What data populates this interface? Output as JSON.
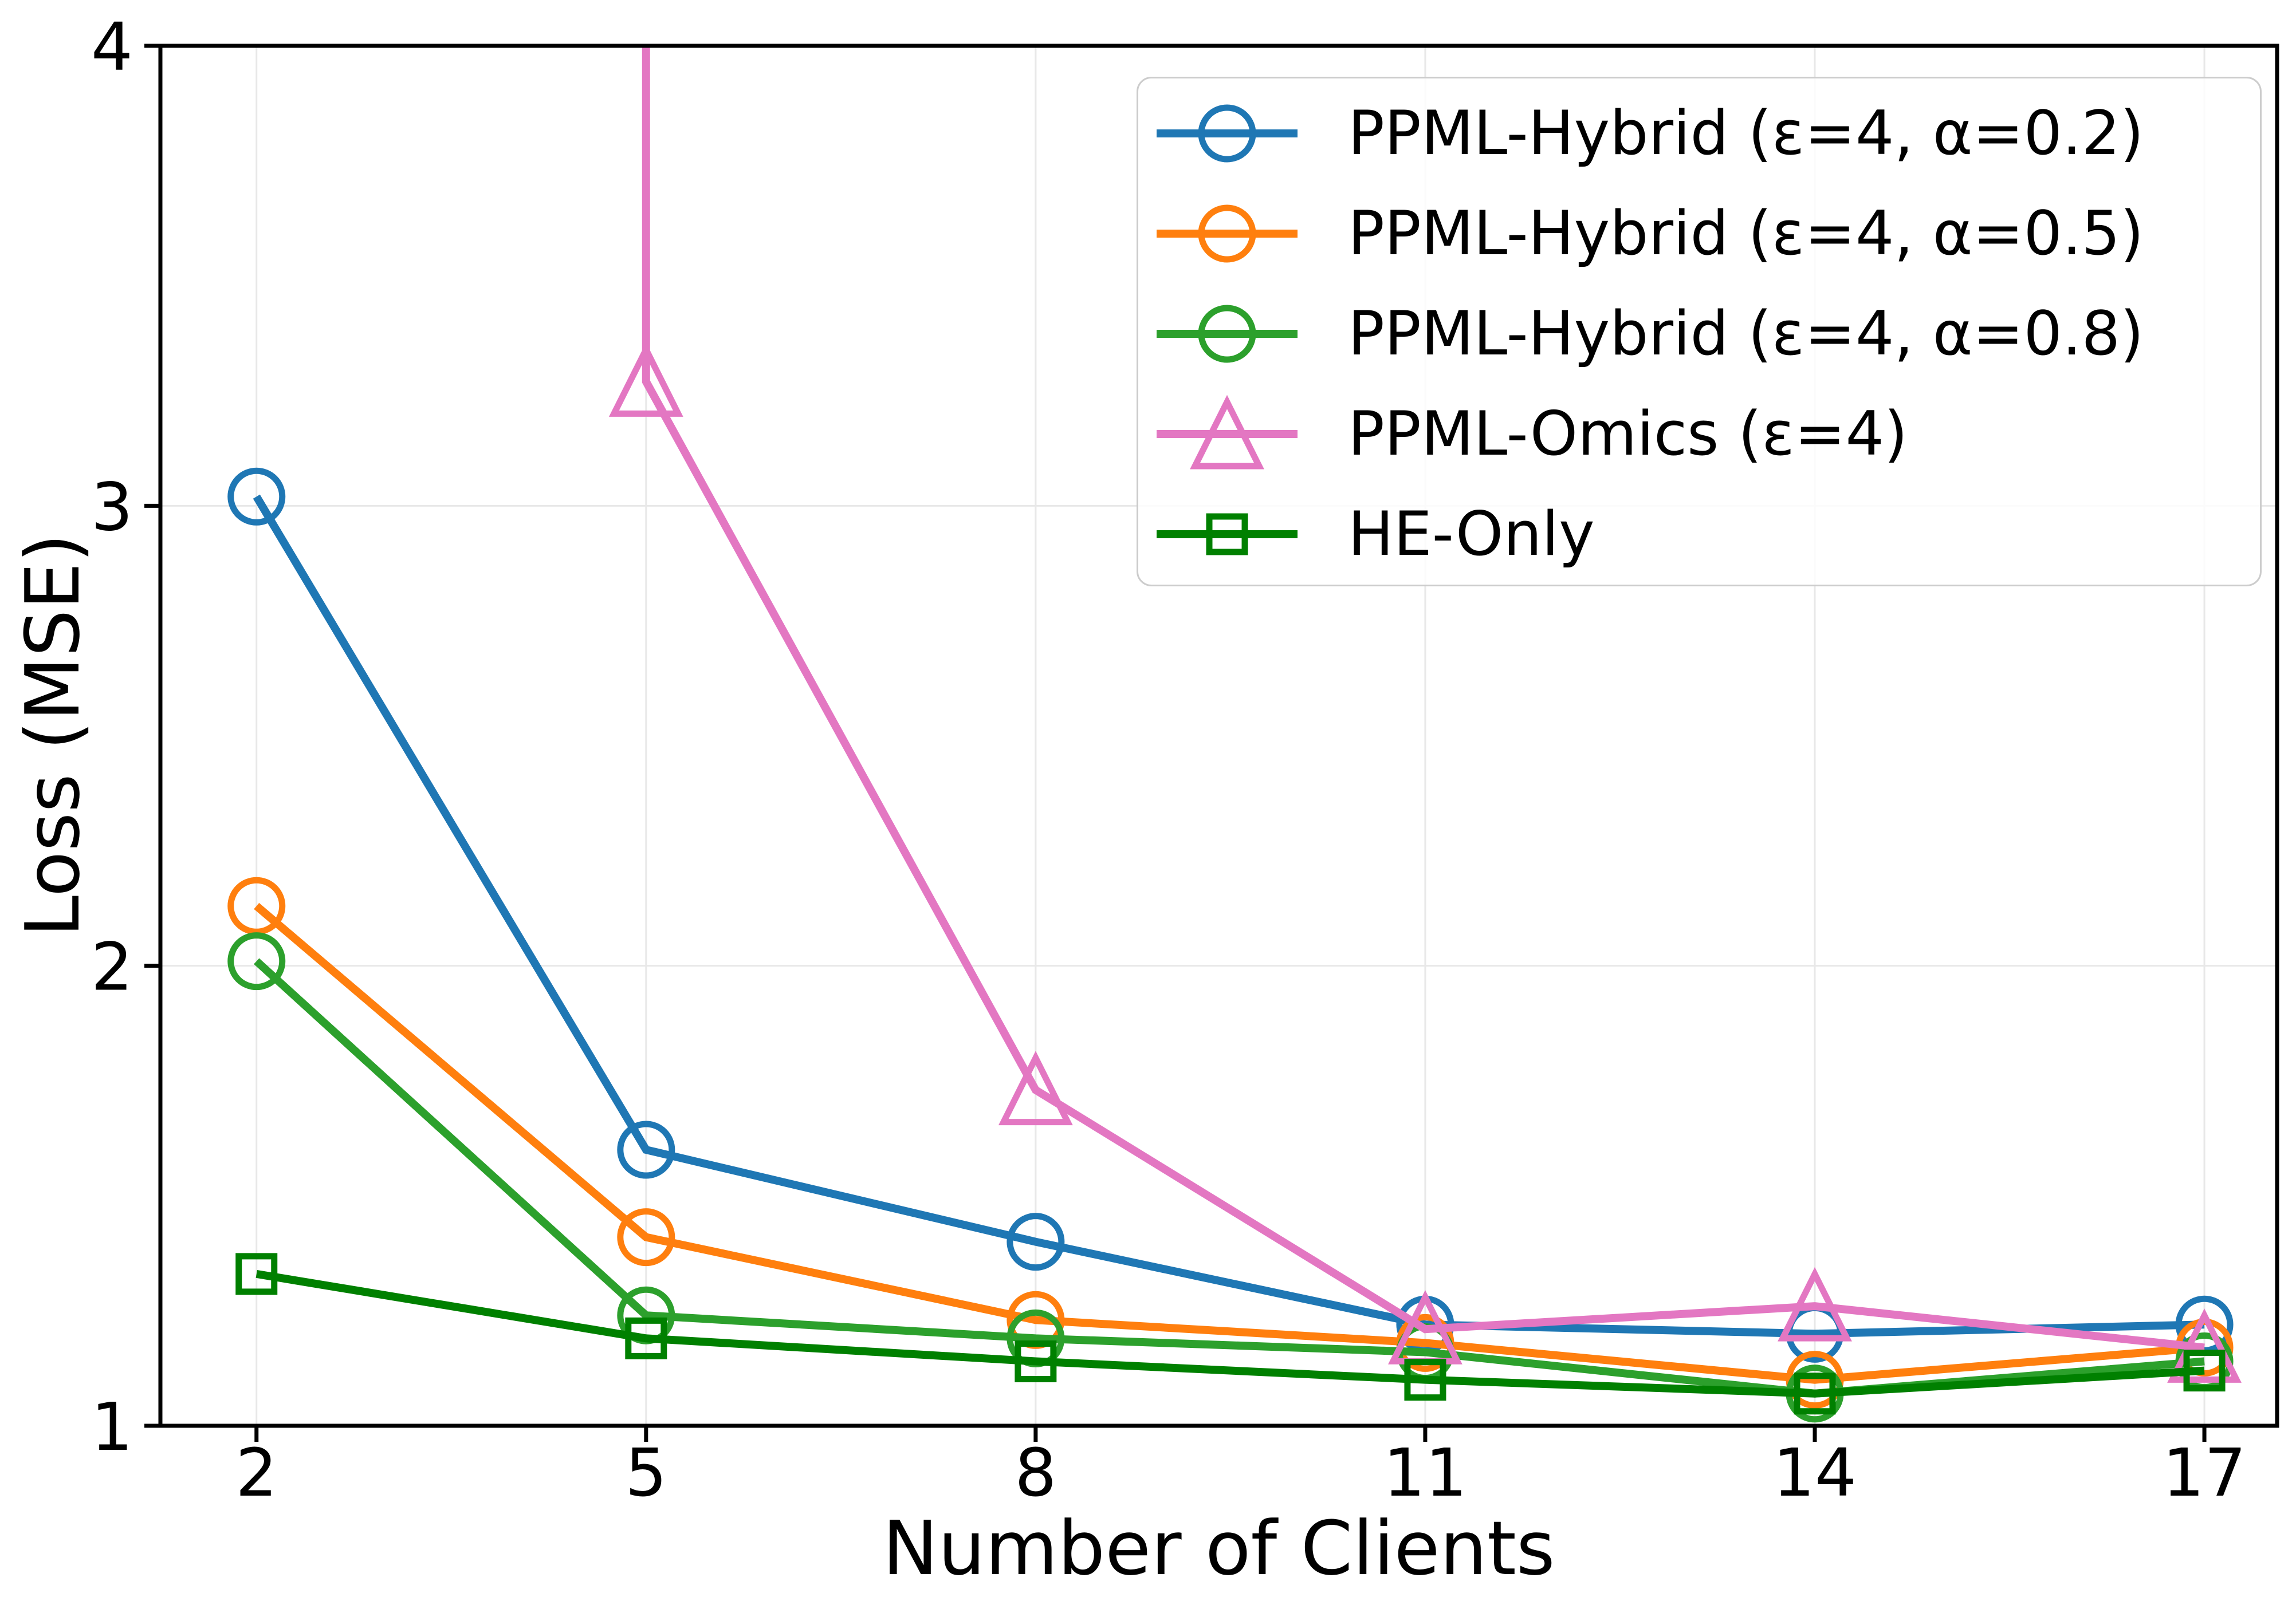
{
  "figure": {
    "background": "#ffffff"
  },
  "chart_data": {
    "type": "line",
    "title": "",
    "xlabel": "Number of Clients",
    "ylabel": "Loss (MSE)",
    "x": [
      2,
      5,
      8,
      11,
      14,
      17
    ],
    "x_tick_labels": [
      "2",
      "5",
      "8",
      "11",
      "14",
      "17"
    ],
    "y_tick_values": [
      1,
      2,
      3,
      4
    ],
    "y_tick_labels": [
      "1",
      "2",
      "3",
      "4"
    ],
    "xlim": [
      1.26,
      17.56
    ],
    "ylim": [
      1,
      4
    ],
    "grid": true,
    "grid_color": "#e8e8e8",
    "legend_position": "upper right",
    "series": [
      {
        "name": "PPML-Hybrid (ε=4, α=0.2)",
        "color": "#1f77b4",
        "marker": "circle",
        "values": [
          3.02,
          1.6,
          1.4,
          1.22,
          1.2,
          1.22
        ]
      },
      {
        "name": "PPML-Hybrid (ε=4, α=0.5)",
        "color": "#ff7f0e",
        "marker": "circle",
        "values": [
          2.13,
          1.41,
          1.23,
          1.18,
          1.1,
          1.17
        ]
      },
      {
        "name": "PPML-Hybrid (ε=4, α=0.8)",
        "color": "#2ca02c",
        "marker": "circle",
        "values": [
          2.01,
          1.24,
          1.19,
          1.16,
          1.07,
          1.14
        ]
      },
      {
        "name": "PPML-Omics (ε=4)",
        "color": "#e377c2",
        "marker": "triangle",
        "values": [
          null,
          3.27,
          1.73,
          1.21,
          1.26,
          1.17
        ],
        "offscale_start": true
      },
      {
        "name": "HE-Only",
        "color": "#008000",
        "marker": "square",
        "values": [
          1.33,
          1.19,
          1.14,
          1.1,
          1.07,
          1.12
        ]
      }
    ]
  }
}
